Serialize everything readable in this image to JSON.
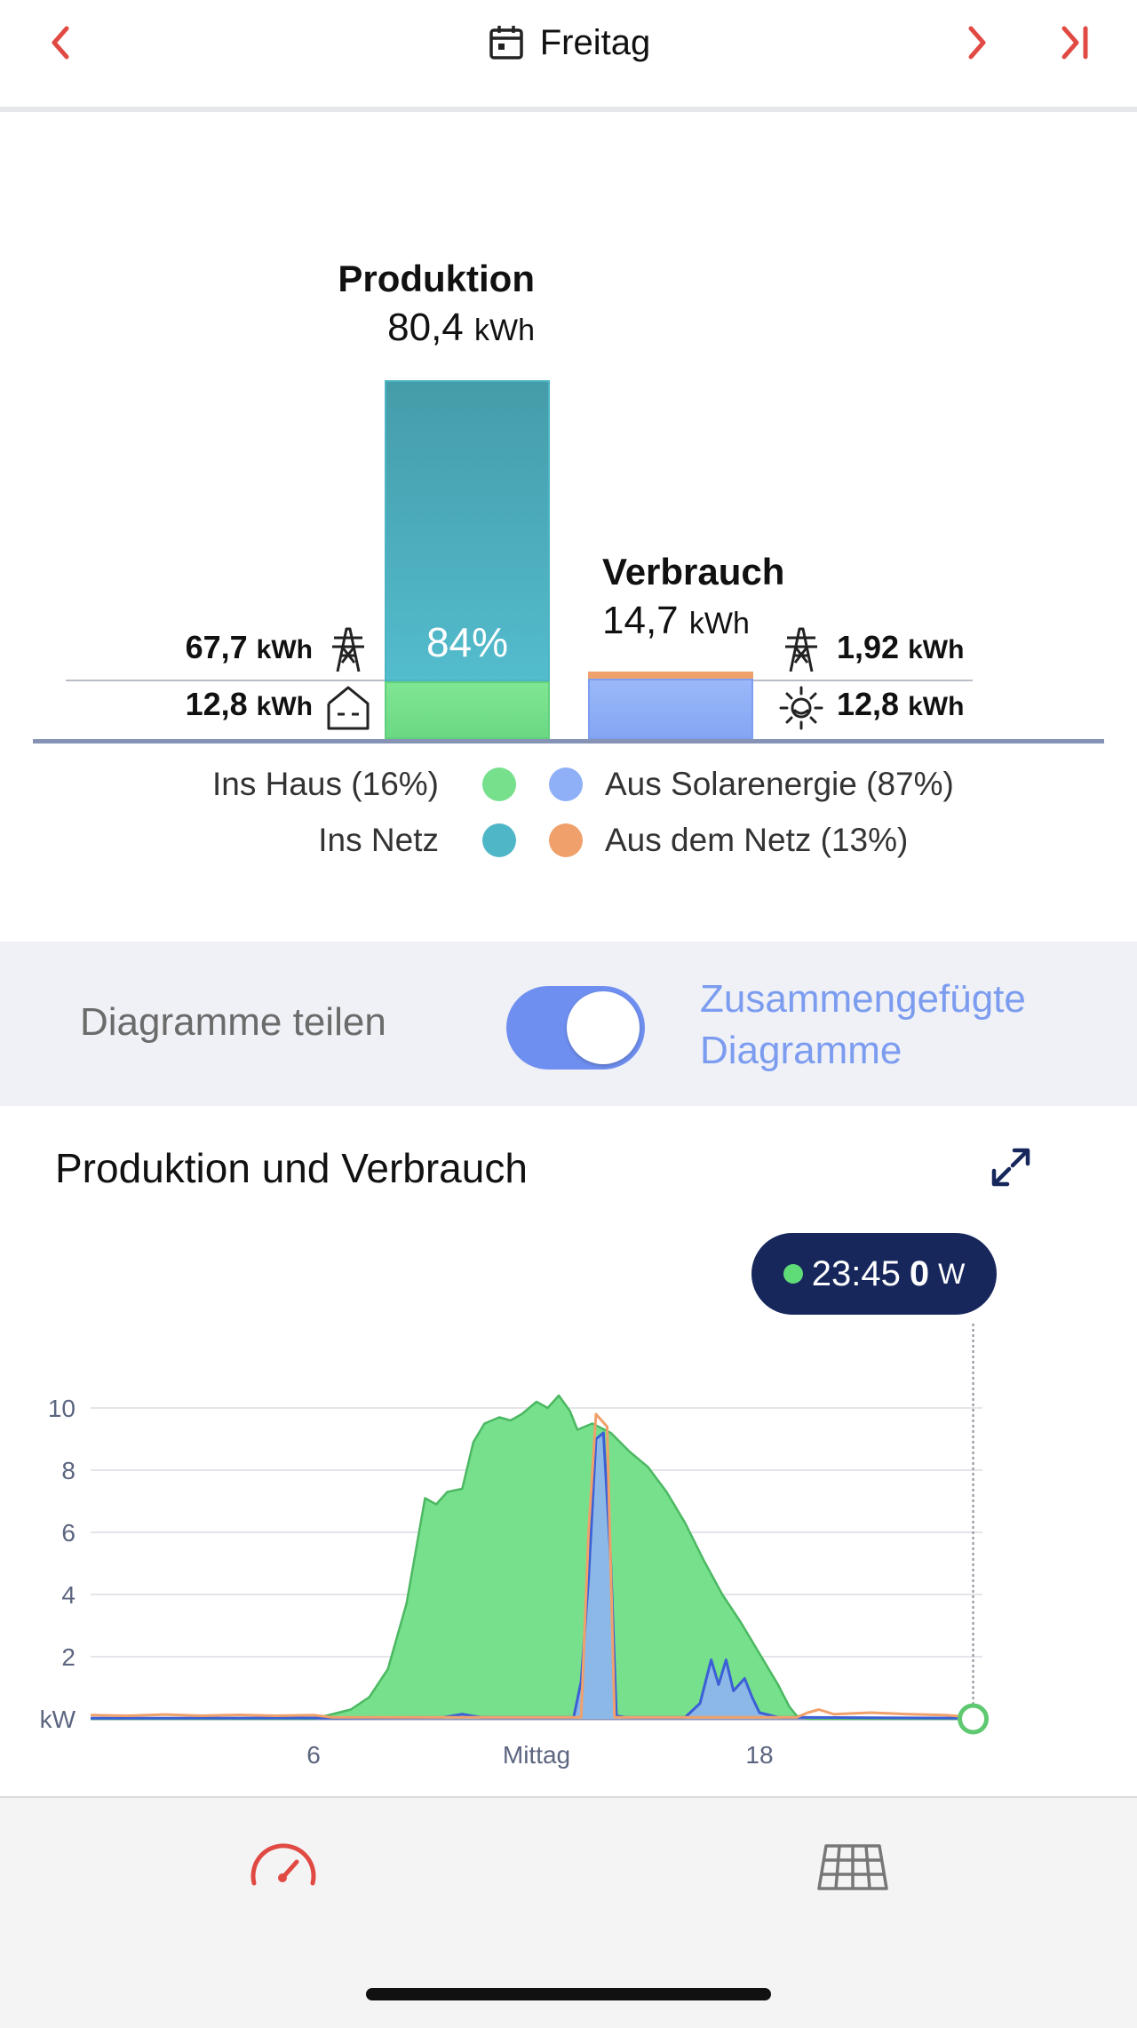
{
  "header": {
    "title": "Freitag",
    "back_icon": "chevron-left-icon",
    "next_icon": "chevron-right-icon",
    "last_icon": "skip-to-end-icon",
    "calendar_icon": "calendar-icon"
  },
  "summary": {
    "production": {
      "label": "Produktion",
      "value": "80,4",
      "unit": "kWh",
      "percent_label": "84%"
    },
    "consumption": {
      "label": "Verbrauch",
      "value": "14,7",
      "unit": "kWh"
    },
    "left": {
      "grid_value": "67,7",
      "grid_unit": "kWh",
      "house_value": "12,8",
      "house_unit": "kWh"
    },
    "right": {
      "grid_value": "1,92",
      "grid_unit": "kWh",
      "solar_value": "12,8",
      "solar_unit": "kWh"
    },
    "bars": {
      "production_to_grid_fraction": 0.84,
      "production_to_house_fraction": 0.16,
      "consumption_from_solar_fraction": 0.87,
      "consumption_from_grid_fraction": 0.13
    },
    "legend": {
      "ins_haus": "Ins Haus (16%)",
      "ins_netz": "Ins Netz",
      "aus_solar": "Aus Solarenergie (87%)",
      "aus_netz": "Aus dem Netz (13%)"
    }
  },
  "toggle": {
    "left_label": "Diagramme teilen",
    "right_label_1": "Zusammengefügte",
    "right_label_2": "Diagramme",
    "state": "on"
  },
  "chart_section": {
    "title": "Produktion und Verbrauch",
    "expand_icon": "expand-icon",
    "tooltip": {
      "time": "23:45",
      "value": "0",
      "unit": "W"
    }
  },
  "colors": {
    "accent_red": "#e04a43",
    "production_house": "#76e08d",
    "production_grid": "#4fb6c7",
    "consumption_solar": "#8fb0f7",
    "consumption_grid": "#f0a06a",
    "toggle_on": "#6f8ff0",
    "tooltip_bg": "#17275c"
  },
  "chart_data": {
    "type": "area",
    "ylabel": "kW",
    "yticks": [
      "kW",
      "2",
      "4",
      "6",
      "8",
      "10"
    ],
    "ylim": [
      0,
      11
    ],
    "xlim": [
      0,
      24
    ],
    "xticks": [
      {
        "x": 6,
        "label": "6"
      },
      {
        "x": 12,
        "label": "Mittag"
      },
      {
        "x": 18,
        "label": "18"
      }
    ],
    "grid": true,
    "series": [
      {
        "color": "#76e08d",
        "points": [
          [
            0,
            0
          ],
          [
            6,
            0
          ],
          [
            6.5,
            0.15
          ],
          [
            7,
            0.3
          ],
          [
            7.5,
            0.7
          ],
          [
            8,
            1.6
          ],
          [
            8.5,
            3.7
          ],
          [
            9,
            7.1
          ],
          [
            9.3,
            6.9
          ],
          [
            9.6,
            7.3
          ],
          [
            10,
            7.4
          ],
          [
            10.3,
            8.9
          ],
          [
            10.6,
            9.5
          ],
          [
            11,
            9.7
          ],
          [
            11.3,
            9.6
          ],
          [
            11.6,
            9.8
          ],
          [
            12,
            10.2
          ],
          [
            12.3,
            10.0
          ],
          [
            12.6,
            10.4
          ],
          [
            12.9,
            9.9
          ],
          [
            13.1,
            9.3
          ],
          [
            13.5,
            9.5
          ],
          [
            14,
            9.2
          ],
          [
            14.5,
            8.6
          ],
          [
            15,
            8.1
          ],
          [
            15.5,
            7.3
          ],
          [
            16,
            6.3
          ],
          [
            16.5,
            5.1
          ],
          [
            17,
            4.0
          ],
          [
            17.5,
            3.1
          ],
          [
            18,
            2.1
          ],
          [
            18.5,
            1.1
          ],
          [
            18.8,
            0.4
          ],
          [
            19,
            0.1
          ],
          [
            19.3,
            0
          ],
          [
            24,
            0
          ]
        ]
      },
      {
        "color": "#8fb0f7",
        "points": [
          [
            0,
            0.02
          ],
          [
            6.5,
            0.03
          ],
          [
            9.5,
            0.05
          ],
          [
            10,
            0.15
          ],
          [
            10.5,
            0.05
          ],
          [
            13,
            0.05
          ],
          [
            13.2,
            1.2
          ],
          [
            13.4,
            4.5
          ],
          [
            13.6,
            9.0
          ],
          [
            13.8,
            9.2
          ],
          [
            14.0,
            5.0
          ],
          [
            14.15,
            0.1
          ],
          [
            14.4,
            0.05
          ],
          [
            16,
            0.05
          ],
          [
            16.4,
            0.5
          ],
          [
            16.7,
            1.9
          ],
          [
            16.9,
            1.1
          ],
          [
            17.1,
            1.9
          ],
          [
            17.3,
            0.9
          ],
          [
            17.6,
            1.3
          ],
          [
            17.8,
            0.7
          ],
          [
            18.0,
            0.2
          ],
          [
            18.5,
            0.05
          ],
          [
            24,
            0.02
          ]
        ]
      },
      {
        "color": "#f0a06a",
        "points": [
          [
            0,
            0.12
          ],
          [
            1,
            0.1
          ],
          [
            2,
            0.14
          ],
          [
            3,
            0.1
          ],
          [
            4,
            0.13
          ],
          [
            5,
            0.1
          ],
          [
            6,
            0.12
          ],
          [
            6.5,
            0.05
          ],
          [
            13.2,
            0.05
          ],
          [
            13.4,
            6.0
          ],
          [
            13.6,
            9.8
          ],
          [
            13.9,
            9.4
          ],
          [
            14.1,
            0.05
          ],
          [
            19,
            0.05
          ],
          [
            19.3,
            0.2
          ],
          [
            19.6,
            0.3
          ],
          [
            20,
            0.15
          ],
          [
            21,
            0.2
          ],
          [
            22,
            0.15
          ],
          [
            23,
            0.12
          ],
          [
            23.75,
            0.05
          ]
        ]
      }
    ],
    "cursor_x": 23.75
  }
}
